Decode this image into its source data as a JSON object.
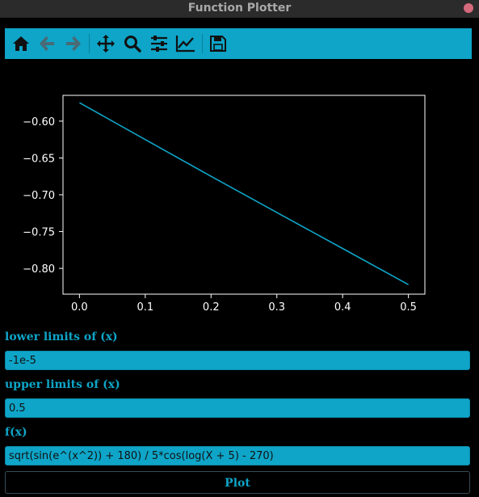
{
  "window": {
    "title": "Function Plotter"
  },
  "toolbar": {
    "icons": [
      "home-icon",
      "back-arrow-icon",
      "forward-arrow-icon",
      "pan-icon",
      "zoom-icon",
      "configure-subplots-icon",
      "edit-axes-icon",
      "save-icon"
    ]
  },
  "form": {
    "lower_label": "lower limits of (x)",
    "lower_value": "-1e-5",
    "upper_label": "upper limits of (x)",
    "upper_value": "0.5",
    "fx_label": "f(x)",
    "fx_value": "sqrt(sin(e^(x^2)) + 180) / 5*cos(log(X + 5) - 270)",
    "plot_button": "Plot"
  },
  "colors": {
    "accent": "#0ea5c8",
    "background": "#000000"
  },
  "chart_data": {
    "type": "line",
    "title": "",
    "xlabel": "",
    "ylabel": "",
    "xlim": [
      -0.025,
      0.525
    ],
    "ylim": [
      -0.835,
      -0.565
    ],
    "xticks": [
      0.0,
      0.1,
      0.2,
      0.3,
      0.4,
      0.5
    ],
    "xtick_labels": [
      "0.0",
      "0.1",
      "0.2",
      "0.3",
      "0.4",
      "0.5"
    ],
    "yticks": [
      -0.6,
      -0.65,
      -0.7,
      -0.75,
      -0.8
    ],
    "ytick_labels": [
      "−0.60",
      "−0.65",
      "−0.70",
      "−0.75",
      "−0.80"
    ],
    "grid": false,
    "series": [
      {
        "color": "#0ea5c8",
        "x": [
          0.0,
          0.1,
          0.2,
          0.3,
          0.4,
          0.5
        ],
        "y": [
          -0.575,
          -0.625,
          -0.675,
          -0.724,
          -0.773,
          -0.822
        ]
      }
    ]
  }
}
